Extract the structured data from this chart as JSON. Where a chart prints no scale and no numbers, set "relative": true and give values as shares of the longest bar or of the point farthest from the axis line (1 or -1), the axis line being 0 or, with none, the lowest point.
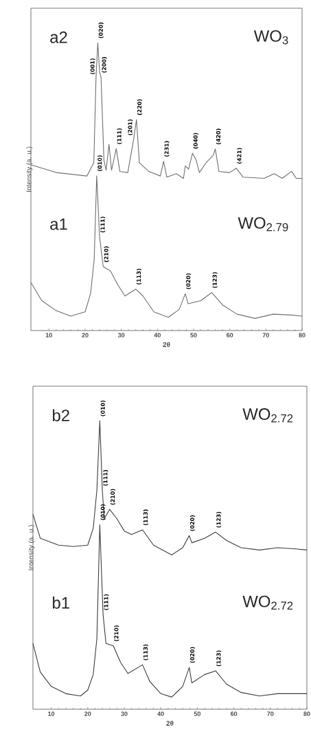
{
  "chart_data": [
    {
      "type": "line",
      "relative": true,
      "xlabel": "2θ",
      "ylabel": "Intensity (a. u.)",
      "xlim": [
        5,
        80
      ],
      "xticks": [
        10,
        20,
        30,
        40,
        50,
        60,
        70,
        80
      ],
      "series": [
        {
          "name": "a2",
          "color": "#6e6e6e",
          "x": [
            5,
            12,
            20.5,
            22.4,
            23,
            23.5,
            24,
            24.4,
            25.2,
            25.8,
            26.6,
            27.3,
            28.6,
            29.6,
            31.8,
            33.4,
            34.2,
            35,
            37.6,
            40.8,
            41.7,
            42.6,
            45.2,
            47.2,
            47.7,
            48.6,
            49.7,
            50.7,
            51.6,
            53.5,
            55.4,
            56,
            57,
            59.9,
            61.8,
            63.7,
            69.5,
            72.3,
            74.5,
            77.1,
            78.4,
            80
          ],
          "values": [
            0.576,
            0.549,
            0.537,
            0.583,
            0.875,
            1.0,
            0.899,
            0.88,
            0.592,
            0.557,
            0.647,
            0.557,
            0.632,
            0.553,
            0.549,
            0.663,
            0.733,
            0.583,
            0.553,
            0.537,
            0.588,
            0.533,
            0.545,
            0.529,
            0.572,
            0.561,
            0.616,
            0.592,
            0.549,
            0.584,
            0.608,
            0.631,
            0.553,
            0.549,
            0.564,
            0.533,
            0.529,
            0.545,
            0.529,
            0.553,
            0.529,
            0.529
          ]
        },
        {
          "name": "a1",
          "color": "#6e6e6e",
          "x": [
            5,
            8,
            12,
            16,
            20,
            21.5,
            22.5,
            23.2,
            24,
            25,
            27,
            29,
            31,
            34,
            36,
            39,
            43,
            46,
            47.7,
            48.5,
            52,
            55,
            58,
            62,
            67,
            72,
            77,
            80
          ],
          "values": [
            0.167,
            0.104,
            0.069,
            0.05,
            0.065,
            0.128,
            0.246,
            0.538,
            0.325,
            0.222,
            0.207,
            0.16,
            0.12,
            0.144,
            0.12,
            0.065,
            0.046,
            0.073,
            0.128,
            0.093,
            0.104,
            0.132,
            0.089,
            0.057,
            0.042,
            0.057,
            0.054,
            0.05
          ]
        }
      ],
      "annotations": [
        "WO$_{3}$",
        "WO$_{2.79}$",
        {
          "text": "(001)",
          "x": 23,
          "y": 0.875
        },
        {
          "text": "(020)",
          "x": 23.5,
          "y": 1.0
        },
        {
          "text": "(200)",
          "x": 24.4,
          "y": 0.88
        },
        {
          "text": "(111)",
          "x": 28.6,
          "y": 0.632
        },
        {
          "text": "(201)",
          "x": 33.4,
          "y": 0.663
        },
        {
          "text": "(220)",
          "x": 34.2,
          "y": 0.733
        },
        {
          "text": "(231)",
          "x": 41.7,
          "y": 0.588
        },
        {
          "text": "(040)",
          "x": 49.7,
          "y": 0.616
        },
        {
          "text": "(420)",
          "x": 56,
          "y": 0.631
        },
        {
          "text": "(421)",
          "x": 61.8,
          "y": 0.564
        },
        {
          "text": "(010)",
          "x": 23.2,
          "y": 0.538
        },
        {
          "text": "(111)",
          "x": 24,
          "y": 0.325
        },
        {
          "text": "(210)",
          "x": 25,
          "y": 0.222
        },
        {
          "text": "(113)",
          "x": 34,
          "y": 0.144
        },
        {
          "text": "(020)",
          "x": 47.7,
          "y": 0.128
        },
        {
          "text": "(123)",
          "x": 55,
          "y": 0.132
        }
      ]
    },
    {
      "type": "line",
      "relative": true,
      "xlabel": "2θ",
      "ylabel": "Intensity (a. u.)",
      "xlim": [
        5,
        80
      ],
      "xticks": [
        10,
        20,
        30,
        40,
        50,
        60,
        70,
        80
      ],
      "series": [
        {
          "name": "b2",
          "color": "#3c3c3c",
          "x": [
            5,
            7,
            12,
            16,
            20,
            21.5,
            22.5,
            23.3,
            24,
            24.5,
            26,
            28,
            30,
            32,
            35,
            38,
            43,
            46,
            47.8,
            48.5,
            52,
            55,
            58,
            62,
            67,
            72,
            77,
            80
          ],
          "values": [
            0.676,
            0.593,
            0.569,
            0.564,
            0.569,
            0.627,
            0.759,
            1.0,
            0.759,
            0.66,
            0.693,
            0.66,
            0.618,
            0.606,
            0.622,
            0.569,
            0.535,
            0.56,
            0.602,
            0.577,
            0.593,
            0.614,
            0.585,
            0.56,
            0.552,
            0.56,
            0.556,
            0.552
          ]
        },
        {
          "name": "b1",
          "color": "#3c3c3c",
          "x": [
            5,
            7,
            10,
            14,
            18,
            20,
            21.5,
            22.5,
            23.3,
            24.2,
            25,
            27,
            29,
            31,
            35,
            37,
            40,
            43,
            46,
            47.8,
            48.5,
            52,
            55,
            58,
            62,
            67,
            72,
            77,
            80
          ],
          "values": [
            0.228,
            0.129,
            0.079,
            0.054,
            0.046,
            0.066,
            0.12,
            0.245,
            0.64,
            0.328,
            0.228,
            0.22,
            0.162,
            0.124,
            0.154,
            0.096,
            0.054,
            0.042,
            0.079,
            0.145,
            0.091,
            0.12,
            0.133,
            0.087,
            0.058,
            0.046,
            0.054,
            0.054,
            0.054
          ]
        }
      ],
      "annotations": [
        "WO$_{2.72}$",
        "WO$_{2.72}$",
        {
          "text": "(010)",
          "x": 23.3,
          "y": 1.0
        },
        {
          "text": "(111)",
          "x": 24,
          "y": 0.759
        },
        {
          "text": "(210)",
          "x": 26,
          "y": 0.693
        },
        {
          "text": "(113)",
          "x": 35,
          "y": 0.622
        },
        {
          "text": "(020)",
          "x": 47.8,
          "y": 0.602
        },
        {
          "text": "(123)",
          "x": 55,
          "y": 0.614
        },
        {
          "text": "(010)",
          "x": 23.3,
          "y": 0.64
        },
        {
          "text": "(111)",
          "x": 24.2,
          "y": 0.328
        },
        {
          "text": "(210)",
          "x": 27,
          "y": 0.22
        },
        {
          "text": "(113)",
          "x": 35,
          "y": 0.154
        },
        {
          "text": "(020)",
          "x": 47.8,
          "y": 0.145
        },
        {
          "text": "(123)",
          "x": 55,
          "y": 0.133
        }
      ]
    }
  ]
}
